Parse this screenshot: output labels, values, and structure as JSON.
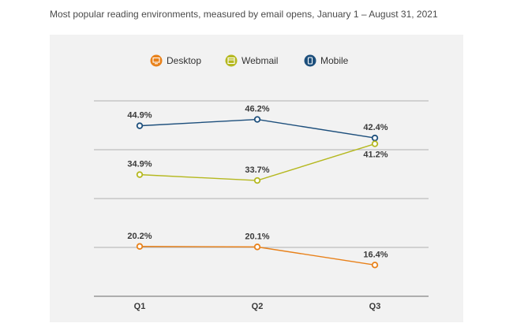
{
  "subtitle": "Most popular reading environments, measured by email opens, January 1 – August 31, 2021",
  "legend": [
    {
      "label": "Desktop",
      "color": "#e8811a",
      "icon": "desktop-icon"
    },
    {
      "label": "Webmail",
      "color": "#b5b81f",
      "icon": "webmail-icon"
    },
    {
      "label": "Mobile",
      "color": "#1d4f7c",
      "icon": "mobile-icon"
    }
  ],
  "chart_data": {
    "type": "line",
    "title": "",
    "xlabel": "",
    "ylabel": "",
    "categories": [
      "Q1",
      "Q2",
      "Q3"
    ],
    "ylim": [
      10,
      50
    ],
    "grid": true,
    "legend_position": "top",
    "series": [
      {
        "name": "Mobile",
        "color": "#1d4f7c",
        "values": [
          44.9,
          46.2,
          42.4
        ],
        "labels": [
          "44.9%",
          "46.2%",
          "42.4%"
        ],
        "label_pos": [
          "above",
          "above",
          "above"
        ]
      },
      {
        "name": "Webmail",
        "color": "#b5b81f",
        "values": [
          34.9,
          33.7,
          41.2
        ],
        "labels": [
          "34.9%",
          "33.7%",
          "41.2%"
        ],
        "label_pos": [
          "above",
          "above",
          "below"
        ]
      },
      {
        "name": "Desktop",
        "color": "#e8811a",
        "values": [
          20.2,
          20.1,
          16.4
        ],
        "labels": [
          "20.2%",
          "20.1%",
          "16.4%"
        ],
        "label_pos": [
          "above",
          "above",
          "above"
        ]
      }
    ]
  }
}
